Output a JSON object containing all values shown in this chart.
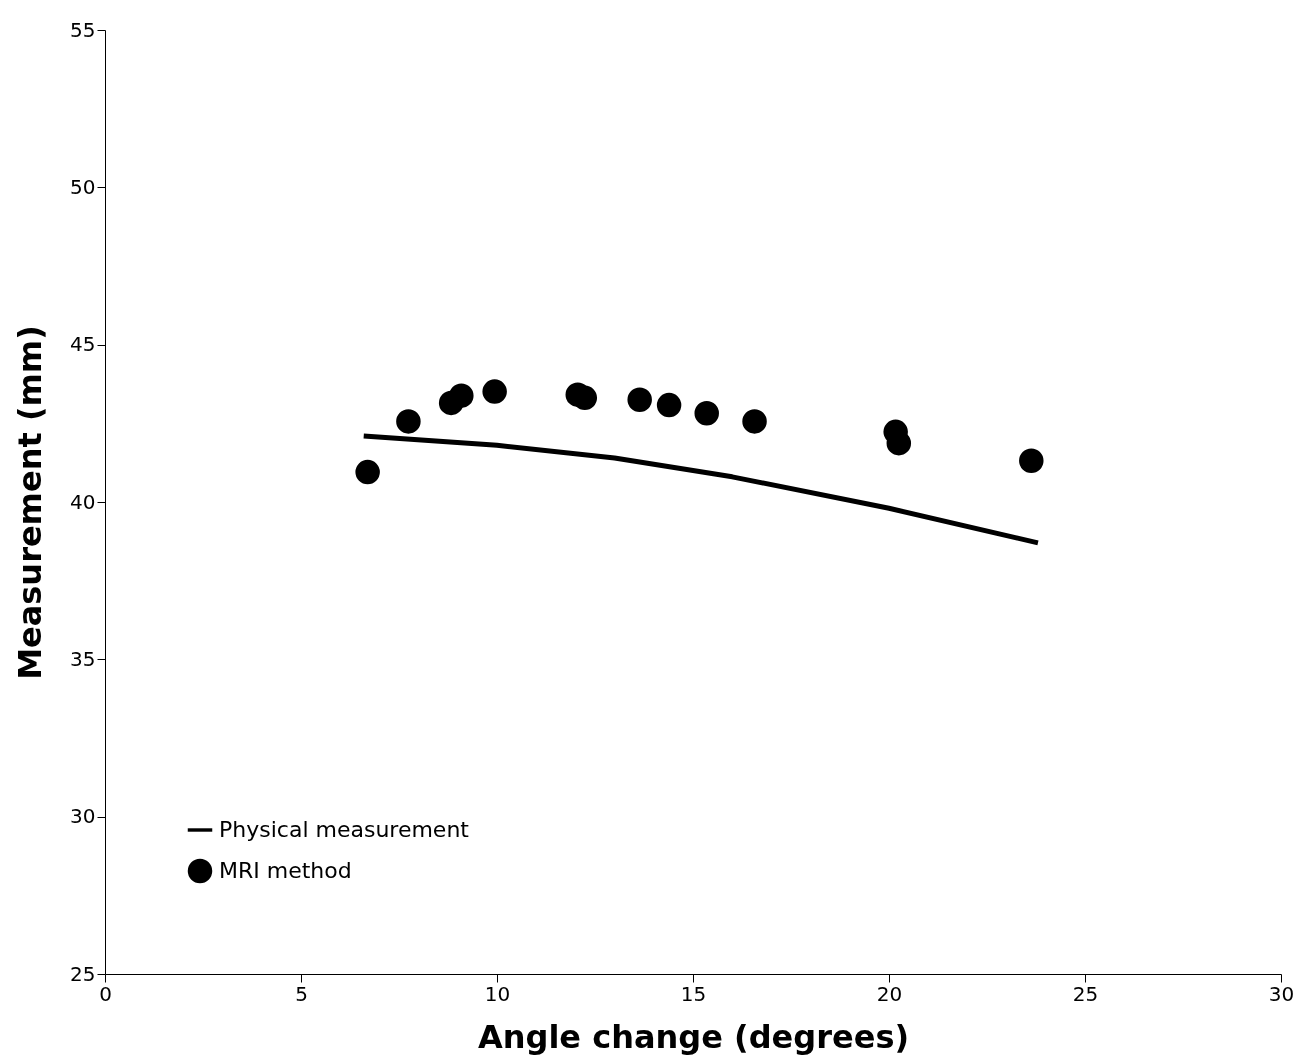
{
  "chart_data": {
    "type": "scatter",
    "xlabel": "Angle change (degrees)",
    "ylabel": "Measurement (mm)",
    "xlim": [
      0,
      30
    ],
    "xticks": [
      0,
      5,
      10,
      15,
      20,
      25,
      30
    ],
    "ylim": [
      25,
      55
    ],
    "yticks": [
      25,
      30,
      35,
      40,
      45,
      50,
      55
    ],
    "grid": false,
    "legend": "bottom left",
    "series": [
      {
        "name": "Physical measurement",
        "type": "line",
        "color": "#000000",
        "marker": "none",
        "line_style": "solid",
        "x": [
          6.6,
          10,
          13,
          16,
          20,
          23.8
        ],
        "values": [
          42.1,
          41.8,
          41.4,
          40.8,
          39.8,
          38.7
        ]
      },
      {
        "name": "MRI method",
        "type": "scatter",
        "color": "#000000",
        "marker": "circle",
        "x": [
          6.7,
          7.74,
          8.83,
          9.09,
          9.94,
          12.06,
          12.24,
          13.64,
          14.39,
          15.35,
          16.57,
          20.17,
          20.25,
          23.63
        ],
        "values": [
          40.95,
          42.56,
          43.15,
          43.38,
          43.51,
          43.41,
          43.31,
          43.25,
          43.08,
          42.82,
          42.56,
          42.23,
          41.87,
          41.31
        ]
      }
    ]
  }
}
